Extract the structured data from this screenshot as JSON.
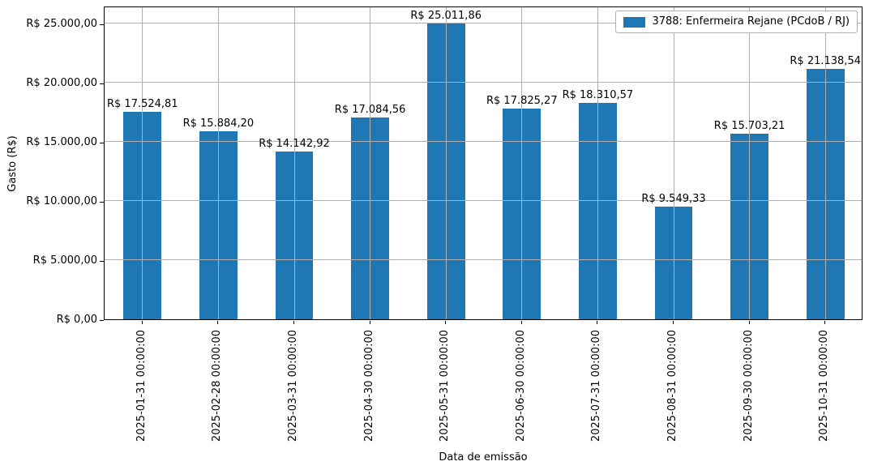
{
  "chart_data": {
    "type": "bar",
    "title": "",
    "xlabel": "Data de emissão",
    "ylabel": "Gasto (R$)",
    "categories": [
      "2025-01-31 00:00:00",
      "2025-02-28 00:00:00",
      "2025-03-31 00:00:00",
      "2025-04-30 00:00:00",
      "2025-05-31 00:00:00",
      "2025-06-30 00:00:00",
      "2025-07-31 00:00:00",
      "2025-08-31 00:00:00",
      "2025-09-30 00:00:00",
      "2025-10-31 00:00:00"
    ],
    "values": [
      17524.81,
      15884.2,
      14142.92,
      17084.56,
      25011.86,
      17825.27,
      18310.57,
      9549.33,
      15703.21,
      21138.54
    ],
    "bar_labels": [
      "R$ 17.524,81",
      "R$ 15.884,20",
      "R$ 14.142,92",
      "R$ 17.084,56",
      "R$ 25.011,86",
      "R$ 17.825,27",
      "R$ 18.310,57",
      "R$ 9.549,33",
      "R$ 15.703,21",
      "R$ 21.138,54"
    ],
    "yticks": [
      {
        "value": 0,
        "label": "R$ 0,00"
      },
      {
        "value": 5000,
        "label": "R$ 5.000,00"
      },
      {
        "value": 10000,
        "label": "R$ 10.000,00"
      },
      {
        "value": 15000,
        "label": "R$ 15.000,00"
      },
      {
        "value": 20000,
        "label": "R$ 20.000,00"
      },
      {
        "value": 25000,
        "label": "R$ 25.000,00"
      }
    ],
    "ylim": [
      0,
      26500
    ],
    "grid": true,
    "bar_color": "#1f77b4",
    "grid_color": "#b0b0b0",
    "legend": {
      "position": "upper right",
      "entries": [
        {
          "label": "3788: Enfermeira Rejane (PCdoB / RJ)",
          "color": "#1f77b4"
        }
      ]
    }
  }
}
